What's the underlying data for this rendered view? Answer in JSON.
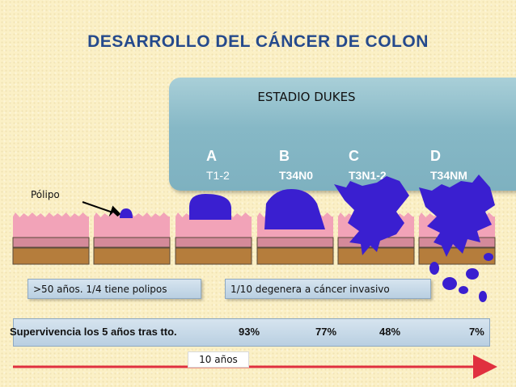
{
  "title": "DESARROLLO DEL CÁNCER DE COLON",
  "stage_box": {
    "header": "ESTADIO DUKES",
    "stages": [
      {
        "letter": "A",
        "code": "T1-2"
      },
      {
        "letter": "B",
        "code": "T34N0"
      },
      {
        "letter": "C",
        "code": "T3N1-2"
      },
      {
        "letter": "D",
        "code": "T34NM"
      }
    ]
  },
  "polyp_label": "Pólipo",
  "info_boxes": {
    "left": ">50 años. 1/4 tiene polipos",
    "right": "1/10 degenera a cáncer invasivo"
  },
  "survival": {
    "label": "Supervivencia los 5 años tras tto.",
    "values": [
      "93%",
      "77%",
      "48%",
      "7%"
    ]
  },
  "timeline": {
    "label": "10 años"
  },
  "colors": {
    "title": "#254a8c",
    "tumor": "#3a1fd0",
    "mucosa": "#f2a3b8",
    "muscle_layer": "#d48a9a",
    "base_layer": "#b57d3c",
    "arrow": "#e0303f"
  }
}
